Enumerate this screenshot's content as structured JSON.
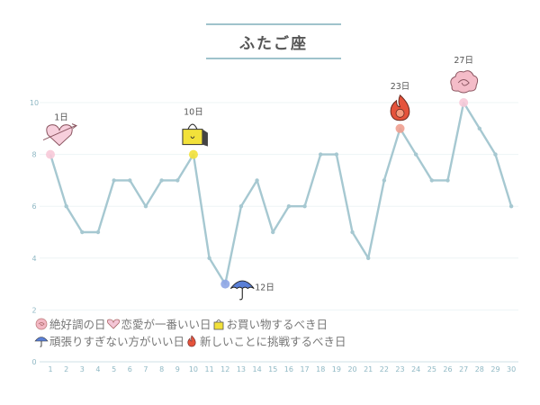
{
  "title": "ふたご座",
  "legend": {
    "row1": [
      {
        "icon": "sparkle-cloud-icon",
        "text": "絶好調の日"
      },
      {
        "icon": "heart-icon",
        "text": "恋愛が一番いい日"
      },
      {
        "icon": "shopping-bag-icon",
        "text": "お買い物するべき日"
      }
    ],
    "row2": [
      {
        "icon": "umbrella-icon",
        "text": "頑張りすぎない方がいい日"
      },
      {
        "icon": "fire-icon",
        "text": "新しいことに挑戦するべき日"
      }
    ]
  },
  "colors": {
    "line": "#a6c8d1",
    "point": "#a6c8d1",
    "title_border": "#9fc3cc",
    "grid": "#edf4f6",
    "tick_text": "#8fb8c4",
    "heart": "#f4c6d6",
    "bag": "#f2e13a",
    "umbrella": "#5a7fd6",
    "fire": "#e5533b",
    "sparkle": "#f2b7c3"
  },
  "chart_data": {
    "type": "line",
    "title": "ふたご座",
    "xlabel": "",
    "ylabel": "",
    "x": [
      1,
      2,
      3,
      4,
      5,
      6,
      7,
      8,
      9,
      10,
      11,
      12,
      13,
      14,
      15,
      16,
      17,
      18,
      19,
      20,
      21,
      22,
      23,
      24,
      25,
      26,
      27,
      28,
      29,
      30
    ],
    "y": [
      8,
      6,
      5,
      5,
      7,
      7,
      6,
      7,
      7,
      8,
      4,
      3,
      6,
      7,
      5,
      6,
      6,
      8,
      8,
      5,
      4,
      7,
      9,
      8,
      7,
      7,
      10,
      9,
      8,
      6
    ],
    "ylim": [
      0,
      10
    ],
    "yticks": [
      0,
      2,
      4,
      6,
      8,
      10
    ],
    "grid": true,
    "annotations": [
      {
        "day": 1,
        "label": "1日",
        "icon": "heart-icon",
        "color": "#f7c9d8"
      },
      {
        "day": 10,
        "label": "10日",
        "icon": "shopping-bag-icon",
        "color": "#f2e13a"
      },
      {
        "day": 12,
        "label": "12日",
        "icon": "umbrella-icon",
        "color": "#8fa6e6"
      },
      {
        "day": 23,
        "label": "23日",
        "icon": "fire-icon",
        "color": "#f0a090"
      },
      {
        "day": 27,
        "label": "27日",
        "icon": "sparkle-cloud-icon",
        "color": "#f7c9d8"
      }
    ]
  }
}
